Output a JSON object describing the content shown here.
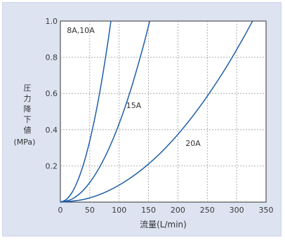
{
  "chart_data": {
    "type": "line",
    "xlabel": "流量(L/min)",
    "ylabel": "圧力降下値",
    "ylabel_unit": "(MPa)",
    "xlim": [
      0,
      350
    ],
    "ylim": [
      0,
      1.0
    ],
    "x_ticks": [
      0,
      50,
      100,
      150,
      200,
      250,
      300,
      350
    ],
    "x_tick_labels": [
      "0",
      "50",
      "100",
      "150",
      "200",
      "250",
      "300",
      "350"
    ],
    "y_ticks": [
      0.2,
      0.4,
      0.6,
      0.8,
      1.0
    ],
    "y_tick_labels": [
      "0.2",
      "0.4",
      "0.6",
      "0.8",
      "1.0"
    ],
    "grid": true,
    "grid_style": "dashed",
    "series": [
      {
        "name": "8A,10A",
        "color": "#1f5fa8",
        "x": [
          0,
          10,
          20,
          30,
          40,
          50,
          60,
          70,
          80,
          86
        ],
        "y": [
          0,
          0.014,
          0.054,
          0.122,
          0.216,
          0.338,
          0.486,
          0.662,
          0.865,
          1.0
        ]
      },
      {
        "name": "15A",
        "color": "#1f5fa8",
        "x": [
          0,
          20,
          40,
          60,
          80,
          100,
          120,
          140,
          152
        ],
        "y": [
          0,
          0.017,
          0.069,
          0.156,
          0.277,
          0.433,
          0.623,
          0.848,
          1.0
        ]
      },
      {
        "name": "20A",
        "color": "#1f5fa8",
        "x": [
          0,
          40,
          80,
          120,
          160,
          200,
          240,
          280,
          310,
          327
        ],
        "y": [
          0,
          0.015,
          0.06,
          0.135,
          0.239,
          0.374,
          0.539,
          0.733,
          0.899,
          1.0
        ]
      }
    ]
  }
}
